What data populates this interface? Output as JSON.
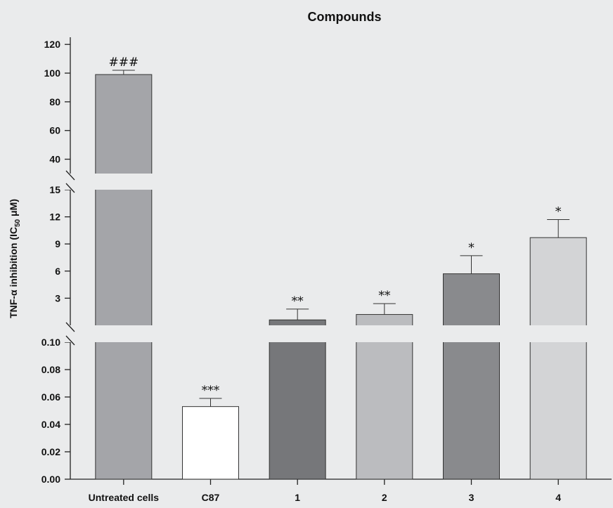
{
  "chart_data": {
    "type": "bar",
    "title": "Compounds",
    "ylabel_main": "TNF-α inhibition (IC",
    "ylabel_sub": "50",
    "ylabel_unit": " μM)",
    "y_axis_break": true,
    "segments": [
      {
        "name": "low",
        "range": [
          0,
          0.1
        ],
        "ticks": [
          "0.00",
          "0.02",
          "0.04",
          "0.06",
          "0.08",
          "0.10"
        ]
      },
      {
        "name": "mid",
        "range": [
          0,
          15
        ],
        "ticks": [
          "3",
          "6",
          "9",
          "12",
          "15"
        ]
      },
      {
        "name": "high",
        "range": [
          30,
          125
        ],
        "ticks": [
          "40",
          "60",
          "80",
          "100",
          "120"
        ]
      }
    ],
    "categories": [
      "Untreated cells",
      "C87",
      "1",
      "2",
      "3",
      "4"
    ],
    "values": [
      99,
      0.053,
      0.6,
      1.2,
      5.7,
      9.7
    ],
    "errors": [
      3,
      0.006,
      1.2,
      1.2,
      2.0,
      2.0
    ],
    "significance": [
      "###",
      "***",
      "**",
      "**",
      "*",
      "*"
    ],
    "colors": [
      "#a4a5a9",
      "#ffffff",
      "#76777a",
      "#bbbcbf",
      "#898a8d",
      "#d3d4d6"
    ],
    "background": "#eaebec"
  }
}
